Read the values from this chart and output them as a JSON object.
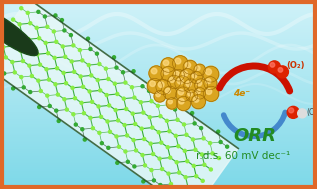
{
  "bg_color": "#7dd8e8",
  "bg_color2": "#c0eef5",
  "border_color": "#e06828",
  "border_width": 3,
  "title_text": "ORR",
  "title_color": "#228B22",
  "title_fontsize": 13,
  "subtitle_text": "r.d.s. 60 mV dec⁻¹",
  "subtitle_color": "#228B22",
  "subtitle_fontsize": 7.5,
  "o2_label": "(O₂)",
  "oh_label": "(OH⁻)",
  "four_e_label": "4e⁻",
  "label_color_o2": "#cc3300",
  "label_color_oh": "#444444",
  "label_color_4e": "#cc8800",
  "arrow_red_color": "#cc1100",
  "arrow_blue_color": "#4488cc",
  "cnt_line_color": "#33aa33",
  "cnt_dark_color": "#1a4a1a",
  "cnt_node_color": "#88ee44",
  "au_color": "#DAA520",
  "au_highlight": "#ffdd88",
  "au_dark_color": "#996600",
  "o_atom_color": "#dd2200",
  "o_highlight": "#ff7766",
  "oh_o_color": "#dd2200",
  "oh_h_color": "#dddddd",
  "wave_color": "#ffffff",
  "cnt_bg_color": "#e8f8f8"
}
